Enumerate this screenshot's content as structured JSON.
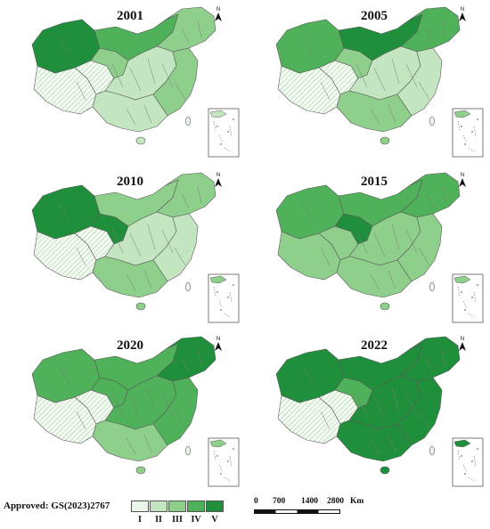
{
  "colors": {
    "I": "#eaf6e9",
    "II": "#c3e6c0",
    "III": "#8fcf8c",
    "IV": "#4fb159",
    "V": "#1f8f3c",
    "hatch": "#7db87d",
    "border": "#5a5a5a"
  },
  "maps": [
    {
      "year": "2001",
      "west": "hatch",
      "north": "IV",
      "center": "II",
      "south": "II",
      "east": "III",
      "northeast": "III",
      "northwest": "V",
      "tibet_plateau": "hatch",
      "qinghai": "III"
    },
    {
      "year": "2005",
      "west": "hatch",
      "north": "V",
      "center": "II",
      "south": "III",
      "east": "II",
      "northeast": "IV",
      "northwest": "IV",
      "tibet_plateau": "hatch",
      "qinghai": "III"
    },
    {
      "year": "2010",
      "west": "hatch",
      "north": "III",
      "center": "II",
      "south": "III",
      "east": "II",
      "northeast": "III",
      "northwest": "V",
      "tibet_plateau": "hatch",
      "qinghai": "V"
    },
    {
      "year": "2015",
      "west": "III",
      "north": "IV",
      "center": "III",
      "south": "III",
      "east": "III",
      "northeast": "IV",
      "northwest": "IV",
      "tibet_plateau": "III",
      "qinghai": "V"
    },
    {
      "year": "2020",
      "west": "hatch",
      "north": "IV",
      "center": "IV",
      "south": "III",
      "east": "IV",
      "northeast": "V",
      "northwest": "IV",
      "tibet_plateau": "hatch",
      "qinghai": "IV"
    },
    {
      "year": "2022",
      "west": "hatch",
      "north": "V",
      "center": "V",
      "south": "V",
      "east": "V",
      "northeast": "V",
      "northwest": "V",
      "tibet_plateau": "hatch",
      "qinghai": "IV"
    }
  ],
  "north_label": "N",
  "approval": "Approved: GS(2023)2767",
  "legend": [
    "I",
    "II",
    "III",
    "IV",
    "V"
  ],
  "scale": {
    "ticks": [
      "0",
      "700",
      "1400",
      "2800"
    ],
    "unit": "Km"
  }
}
